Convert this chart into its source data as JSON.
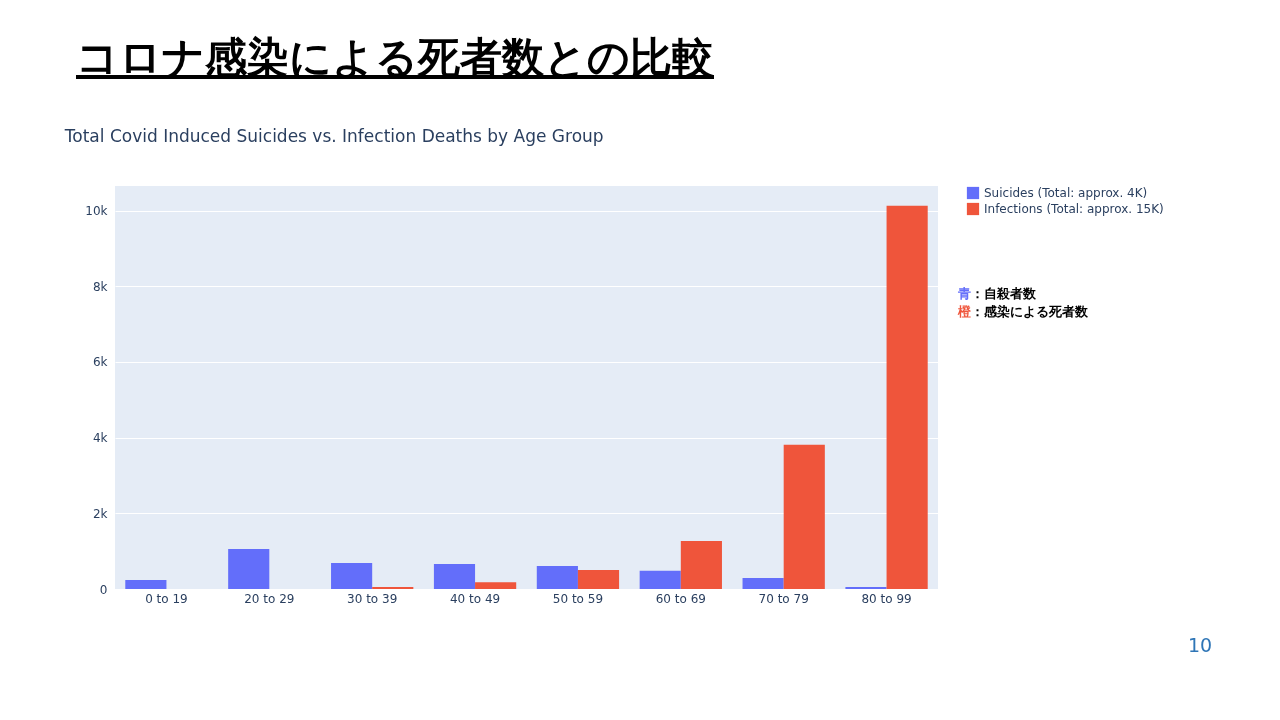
{
  "chart_data": {
    "type": "bar",
    "title": "コロナ感染による死者数との比較",
    "subtitle": "Total Covid Induced Suicides vs. Infection Deaths by Age Group",
    "categories": [
      "0 to 19",
      "20 to 29",
      "30 to 39",
      "40 to 49",
      "50 to 59",
      "60 to 69",
      "70 to 79",
      "80 to 99"
    ],
    "series": [
      {
        "name": "Suicides (Total: approx. 4K)",
        "color": "#636efa",
        "values": [
          240,
          1060,
          690,
          660,
          610,
          480,
          290,
          50
        ]
      },
      {
        "name": "Infections (Total: approx. 15K)",
        "color": "#ef553b",
        "values": [
          null,
          null,
          50,
          180,
          500,
          1270,
          3810,
          10130
        ]
      }
    ],
    "ylim": [
      0,
      10650
    ],
    "yticks": [
      {
        "value": 0,
        "label": "0"
      },
      {
        "value": 2000,
        "label": "2k"
      },
      {
        "value": 4000,
        "label": "4k"
      },
      {
        "value": 6000,
        "label": "6k"
      },
      {
        "value": 8000,
        "label": "8k"
      },
      {
        "value": 10000,
        "label": "10k"
      }
    ],
    "grid": "y",
    "legend": "top right",
    "annotations": [
      "青：自殺者数",
      "橙：感染による死者数",
      "10"
    ]
  }
}
